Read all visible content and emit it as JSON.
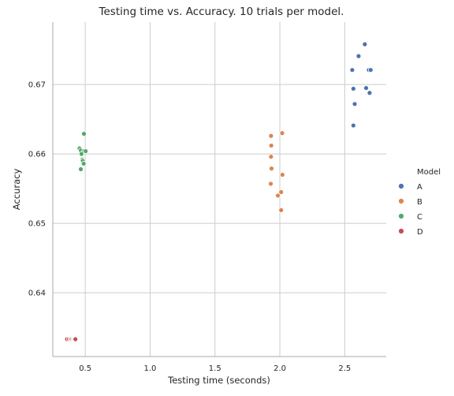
{
  "chart_data": {
    "type": "scatter",
    "title": "Testing time vs. Accuracy. 10 trials per model.",
    "xlabel": "Testing time (seconds)",
    "ylabel": "Accuracy",
    "xlim": [
      0.25,
      2.82
    ],
    "ylim": [
      0.6308,
      0.679
    ],
    "xticks": [
      0.5,
      1.0,
      1.5,
      2.0,
      2.5
    ],
    "xtick_labels": [
      "0.5",
      "1.0",
      "1.5",
      "2.0",
      "2.5"
    ],
    "yticks": [
      0.64,
      0.65,
      0.66,
      0.67
    ],
    "ytick_labels": [
      "0.64",
      "0.65",
      "0.66",
      "0.67"
    ],
    "grid": true,
    "legend": {
      "title": "Model",
      "placement": "right"
    },
    "series": [
      {
        "name": "A",
        "color": "#4c72b0",
        "points": [
          [
            2.655,
            0.6758
          ],
          [
            2.607,
            0.6741
          ],
          [
            2.558,
            0.6721
          ],
          [
            2.686,
            0.6721
          ],
          [
            2.7,
            0.6721
          ],
          [
            2.567,
            0.6694
          ],
          [
            2.665,
            0.6695
          ],
          [
            2.692,
            0.6688
          ],
          [
            2.577,
            0.6672
          ],
          [
            2.567,
            0.6641
          ]
        ]
      },
      {
        "name": "B",
        "color": "#dd8452",
        "points": [
          [
            2.018,
            0.663
          ],
          [
            1.932,
            0.6626
          ],
          [
            1.934,
            0.6612
          ],
          [
            1.932,
            0.6596
          ],
          [
            1.936,
            0.6579
          ],
          [
            2.02,
            0.657
          ],
          [
            1.93,
            0.6557
          ],
          [
            2.01,
            0.6545
          ],
          [
            1.985,
            0.654
          ],
          [
            2.01,
            0.6519
          ]
        ]
      },
      {
        "name": "C",
        "color": "#55a868",
        "points": [
          [
            0.49,
            0.6629
          ],
          [
            0.456,
            0.6608
          ],
          [
            0.466,
            0.6605
          ],
          [
            0.49,
            0.6604
          ],
          [
            0.503,
            0.6604
          ],
          [
            0.471,
            0.66
          ],
          [
            0.478,
            0.6592
          ],
          [
            0.481,
            0.659
          ],
          [
            0.488,
            0.6586
          ],
          [
            0.466,
            0.6578
          ]
        ]
      },
      {
        "name": "D",
        "color": "#c44e52",
        "points": [
          [
            0.36,
            0.6333
          ],
          [
            0.374,
            0.6333
          ],
          [
            0.385,
            0.6333
          ],
          [
            0.392,
            0.6333
          ],
          [
            0.4,
            0.6333
          ],
          [
            0.408,
            0.6333
          ],
          [
            0.413,
            0.6333
          ],
          [
            0.418,
            0.6333
          ],
          [
            0.42,
            0.6333
          ],
          [
            0.424,
            0.6333
          ]
        ]
      }
    ]
  }
}
